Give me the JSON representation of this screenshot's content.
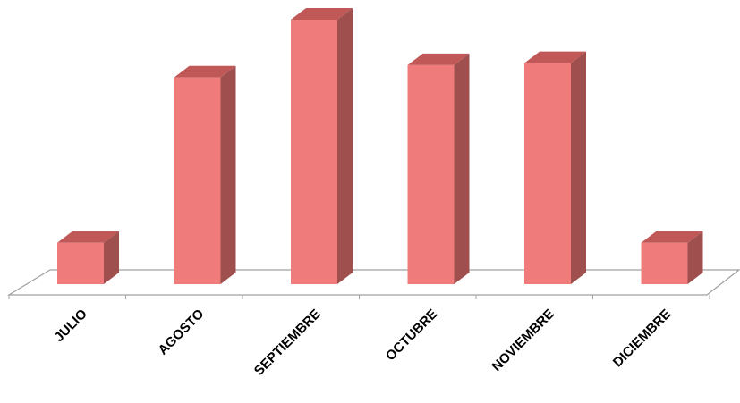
{
  "chart_data": {
    "type": "bar",
    "style": "3d-column",
    "title": "",
    "xlabel": "",
    "ylabel": "",
    "categories": [
      "JULIO",
      "AGOSTO",
      "SEPTIEMBRE",
      "OCTUBRE",
      "NOVIEMBRE",
      "DICIEMBRE"
    ],
    "values": [
      1,
      5,
      6.4,
      5.3,
      5.35,
      1
    ],
    "ylim": [
      0,
      6.4
    ],
    "grid": false,
    "legend": "none",
    "colors": {
      "front": "#f07b7b",
      "side": "#a04f4f",
      "top": "#c05858",
      "floor": "#a0a0a0"
    }
  }
}
